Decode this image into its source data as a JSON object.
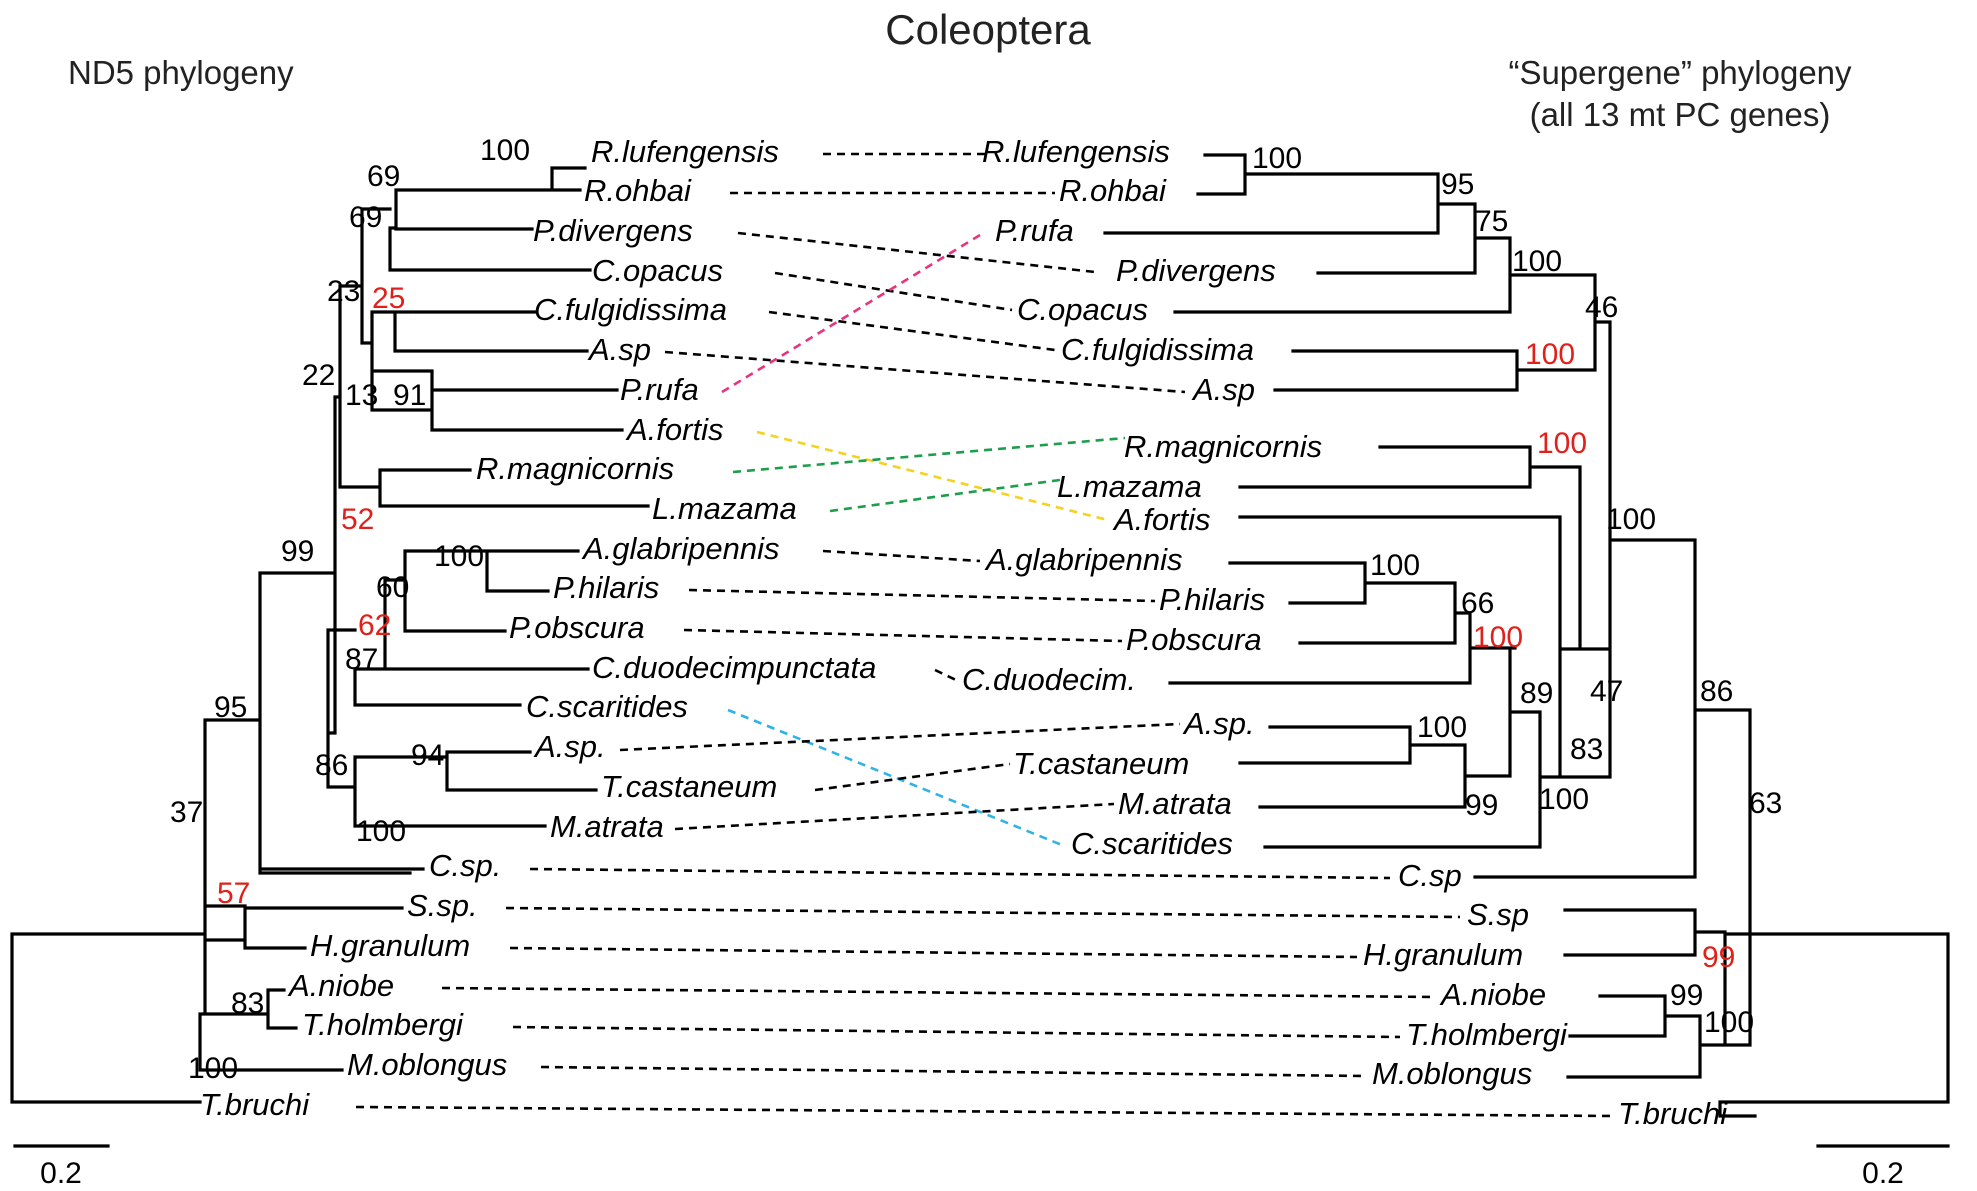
{
  "title": "Coleoptera",
  "left_tree_label": "ND5 phylogeny",
  "right_tree_label_line1": "“Supergene” phylogeny",
  "right_tree_label_line2": "(all 13 mt PC genes)",
  "scale_bar_left": "0.2",
  "scale_bar_right": "0.2",
  "colors": {
    "branch": "#000000",
    "link_default": "#000000",
    "highlight_red_support": "#e0201b",
    "link_prufa": "#e8337f",
    "link_afortis": "#f5d21f",
    "link_rmagnicornis_lmazama": "#1c9e4b",
    "link_cscaritides": "#2fb3e6"
  },
  "left_taxa": {
    "rlufengensis": "R.lufengensis",
    "rohbai": "R.ohbai",
    "pdivergens": "P.divergens",
    "copacus": "C.opacus",
    "cfulgidissima": "C.fulgidissima",
    "asp1": "A.sp",
    "prufa": "P.rufa",
    "afortis": "A.fortis",
    "rmagnicornis": "R.magnicornis",
    "lmazama": "L.mazama",
    "aglabripennis": "A.glabripennis",
    "philaris": "P.hilaris",
    "pobscura": "P.obscura",
    "cduodecim": "C.duodecimpunctata",
    "cscaritides": "C.scaritides",
    "asp2": "A.sp.",
    "tcastaneum": "T.castaneum",
    "matrata": "M.atrata",
    "csp": "C.sp.",
    "ssp": "S.sp.",
    "hgranulum": "H.granulum",
    "aniobe": "A.niobe",
    "tholmbergi": "T.holmbergi",
    "moblongus": "M.oblongus",
    "tbruchi": "T.bruchi"
  },
  "right_taxa": {
    "rlufengensis": "R.lufengensis",
    "rohbai": "R.ohbai",
    "prufa": "P.rufa",
    "pdivergens": "P.divergens",
    "copacus": "C.opacus",
    "cfulgidissima": "C.fulgidissima",
    "asp1": "A.sp",
    "rmagnicornis": "R.magnicornis",
    "lmazama": "L.mazama",
    "afortis": "A.fortis",
    "aglabripennis": "A.glabripennis",
    "philaris": "P.hilaris",
    "pobscura": "P.obscura",
    "cduodecim": "C.duodecim.",
    "asp2": "A.sp.",
    "tcastaneum": "T.castaneum",
    "matrata": "M.atrata",
    "cscaritides": "C.scaritides",
    "csp": "C.sp",
    "ssp": "S.sp",
    "hgranulum": "H.granulum",
    "aniobe": "A.niobe",
    "tholmbergi": "T.holmbergi",
    "moblongus": "M.oblongus",
    "tbruchi": "T.bruchi"
  },
  "left_support": {
    "n100_rl": "100",
    "n69a": "69",
    "n69b": "69",
    "n23": "23",
    "n25": "25",
    "n22": "22",
    "n13": "13",
    "n91": "91",
    "n52": "52",
    "n99": "99",
    "n100_ag": "100",
    "n60": "60",
    "n62": "62",
    "n87": "87",
    "n86": "86",
    "n94": "94",
    "n100_at": "100",
    "n95": "95",
    "n37": "37",
    "n57": "57",
    "n83": "83",
    "n100_tb": "100"
  },
  "right_support": {
    "n100_rl": "100",
    "n95": "95",
    "n75": "75",
    "n100_pd": "100",
    "n46": "46",
    "n100_cf": "100",
    "n100_rm": "100",
    "n100_agb": "100",
    "n66": "66",
    "n100_cd": "100",
    "n89": "89",
    "n47": "47",
    "n83": "83",
    "n100_as": "100",
    "n99_mt": "99",
    "n100_cs": "100",
    "n100_outer": "100",
    "n86": "86",
    "n63": "63",
    "n99_sh": "99",
    "n99_at": "99",
    "n100_tm": "100"
  }
}
